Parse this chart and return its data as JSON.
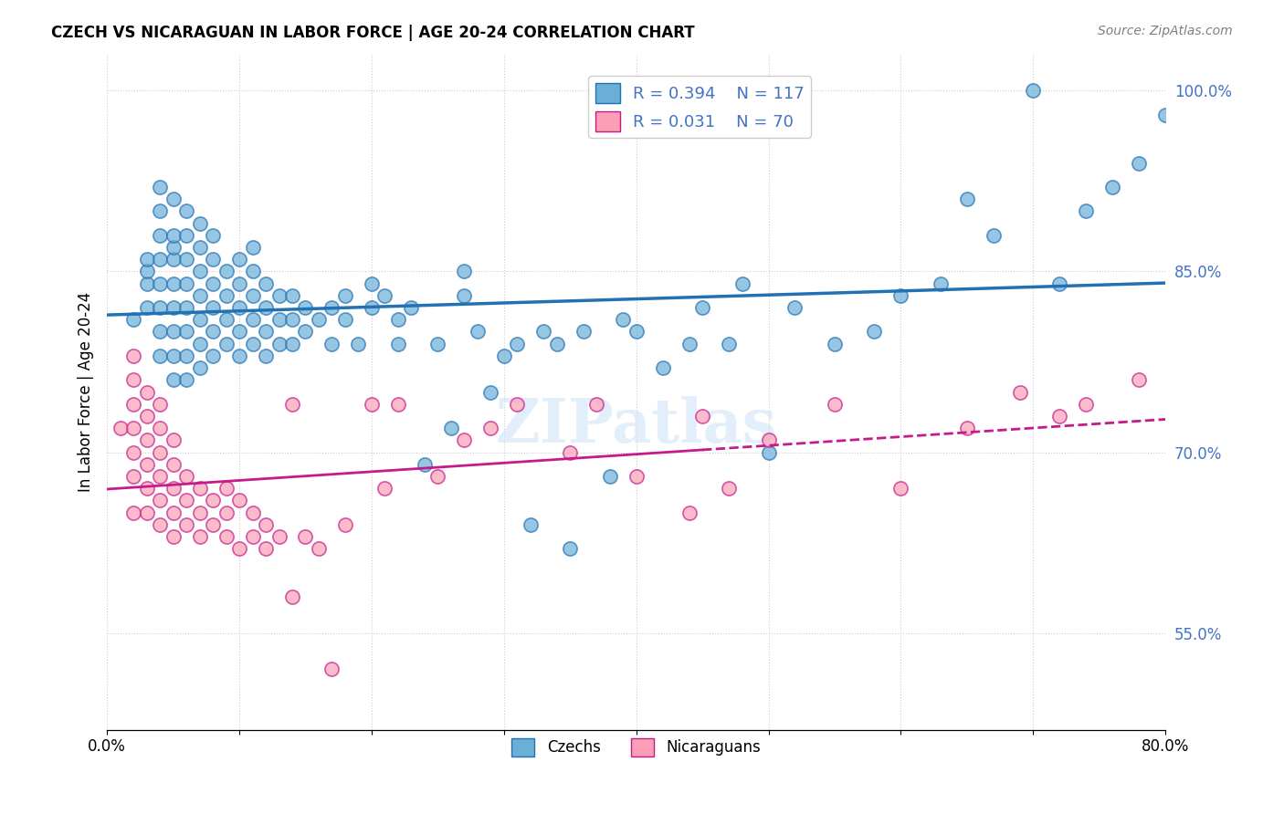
{
  "title": "CZECH VS NICARAGUAN IN LABOR FORCE | AGE 20-24 CORRELATION CHART",
  "source": "Source: ZipAtlas.com",
  "xlabel": "",
  "ylabel": "In Labor Force | Age 20-24",
  "xlim": [
    0.0,
    0.8
  ],
  "ylim": [
    0.47,
    1.03
  ],
  "xticks": [
    0.0,
    0.1,
    0.2,
    0.3,
    0.4,
    0.5,
    0.6,
    0.7,
    0.8
  ],
  "xticklabels": [
    "0.0%",
    "",
    "",
    "",
    "",
    "",
    "",
    "",
    "80.0%"
  ],
  "ytick_positions": [
    0.55,
    0.7,
    0.85,
    1.0
  ],
  "ytick_labels": [
    "55.0%",
    "70.0%",
    "85.0%",
    "100.0%"
  ],
  "blue_color": "#6baed6",
  "pink_color": "#fa9fb5",
  "blue_line_color": "#2171b5",
  "pink_line_color": "#c51b8a",
  "legend_blue_r": "R = 0.394",
  "legend_blue_n": "N = 117",
  "legend_pink_r": "R = 0.031",
  "legend_pink_n": "N = 70",
  "legend_label_czech": "Czechs",
  "legend_label_nicaraguan": "Nicaraguans",
  "watermark": "ZIPatlas",
  "blue_x": [
    0.02,
    0.03,
    0.03,
    0.03,
    0.03,
    0.04,
    0.04,
    0.04,
    0.04,
    0.04,
    0.04,
    0.04,
    0.04,
    0.05,
    0.05,
    0.05,
    0.05,
    0.05,
    0.05,
    0.05,
    0.05,
    0.05,
    0.06,
    0.06,
    0.06,
    0.06,
    0.06,
    0.06,
    0.06,
    0.06,
    0.07,
    0.07,
    0.07,
    0.07,
    0.07,
    0.07,
    0.07,
    0.08,
    0.08,
    0.08,
    0.08,
    0.08,
    0.08,
    0.09,
    0.09,
    0.09,
    0.09,
    0.1,
    0.1,
    0.1,
    0.1,
    0.1,
    0.11,
    0.11,
    0.11,
    0.11,
    0.11,
    0.12,
    0.12,
    0.12,
    0.12,
    0.13,
    0.13,
    0.13,
    0.14,
    0.14,
    0.14,
    0.15,
    0.15,
    0.16,
    0.17,
    0.17,
    0.18,
    0.18,
    0.19,
    0.2,
    0.2,
    0.21,
    0.22,
    0.22,
    0.23,
    0.24,
    0.25,
    0.26,
    0.27,
    0.27,
    0.28,
    0.29,
    0.3,
    0.31,
    0.32,
    0.33,
    0.34,
    0.35,
    0.36,
    0.38,
    0.39,
    0.4,
    0.42,
    0.44,
    0.45,
    0.47,
    0.48,
    0.5,
    0.52,
    0.55,
    0.58,
    0.6,
    0.63,
    0.65,
    0.67,
    0.7,
    0.72,
    0.74,
    0.76,
    0.78,
    0.8
  ],
  "blue_y": [
    0.81,
    0.82,
    0.84,
    0.85,
    0.86,
    0.78,
    0.8,
    0.82,
    0.84,
    0.86,
    0.88,
    0.9,
    0.92,
    0.76,
    0.78,
    0.8,
    0.82,
    0.84,
    0.86,
    0.87,
    0.88,
    0.91,
    0.76,
    0.78,
    0.8,
    0.82,
    0.84,
    0.86,
    0.88,
    0.9,
    0.77,
    0.79,
    0.81,
    0.83,
    0.85,
    0.87,
    0.89,
    0.78,
    0.8,
    0.82,
    0.84,
    0.86,
    0.88,
    0.79,
    0.81,
    0.83,
    0.85,
    0.78,
    0.8,
    0.82,
    0.84,
    0.86,
    0.79,
    0.81,
    0.83,
    0.85,
    0.87,
    0.78,
    0.8,
    0.82,
    0.84,
    0.79,
    0.81,
    0.83,
    0.79,
    0.81,
    0.83,
    0.8,
    0.82,
    0.81,
    0.79,
    0.82,
    0.81,
    0.83,
    0.79,
    0.82,
    0.84,
    0.83,
    0.79,
    0.81,
    0.82,
    0.69,
    0.79,
    0.72,
    0.83,
    0.85,
    0.8,
    0.75,
    0.78,
    0.79,
    0.64,
    0.8,
    0.79,
    0.62,
    0.8,
    0.68,
    0.81,
    0.8,
    0.77,
    0.79,
    0.82,
    0.79,
    0.84,
    0.7,
    0.82,
    0.79,
    0.8,
    0.83,
    0.84,
    0.91,
    0.88,
    1.0,
    0.84,
    0.9,
    0.92,
    0.94,
    0.98
  ],
  "pink_x": [
    0.01,
    0.02,
    0.02,
    0.02,
    0.02,
    0.02,
    0.02,
    0.02,
    0.03,
    0.03,
    0.03,
    0.03,
    0.03,
    0.03,
    0.04,
    0.04,
    0.04,
    0.04,
    0.04,
    0.04,
    0.05,
    0.05,
    0.05,
    0.05,
    0.05,
    0.06,
    0.06,
    0.06,
    0.07,
    0.07,
    0.07,
    0.08,
    0.08,
    0.09,
    0.09,
    0.09,
    0.1,
    0.1,
    0.11,
    0.11,
    0.12,
    0.12,
    0.13,
    0.14,
    0.14,
    0.15,
    0.16,
    0.17,
    0.18,
    0.2,
    0.21,
    0.22,
    0.25,
    0.27,
    0.29,
    0.31,
    0.35,
    0.37,
    0.4,
    0.44,
    0.45,
    0.47,
    0.5,
    0.55,
    0.6,
    0.65,
    0.69,
    0.72,
    0.74,
    0.78
  ],
  "pink_y": [
    0.72,
    0.65,
    0.68,
    0.7,
    0.72,
    0.74,
    0.76,
    0.78,
    0.65,
    0.67,
    0.69,
    0.71,
    0.73,
    0.75,
    0.64,
    0.66,
    0.68,
    0.7,
    0.72,
    0.74,
    0.63,
    0.65,
    0.67,
    0.69,
    0.71,
    0.64,
    0.66,
    0.68,
    0.63,
    0.65,
    0.67,
    0.64,
    0.66,
    0.63,
    0.65,
    0.67,
    0.62,
    0.66,
    0.63,
    0.65,
    0.62,
    0.64,
    0.63,
    0.58,
    0.74,
    0.63,
    0.62,
    0.52,
    0.64,
    0.74,
    0.67,
    0.74,
    0.68,
    0.71,
    0.72,
    0.74,
    0.7,
    0.74,
    0.68,
    0.65,
    0.73,
    0.67,
    0.71,
    0.74,
    0.67,
    0.72,
    0.75,
    0.73,
    0.74,
    0.76
  ]
}
